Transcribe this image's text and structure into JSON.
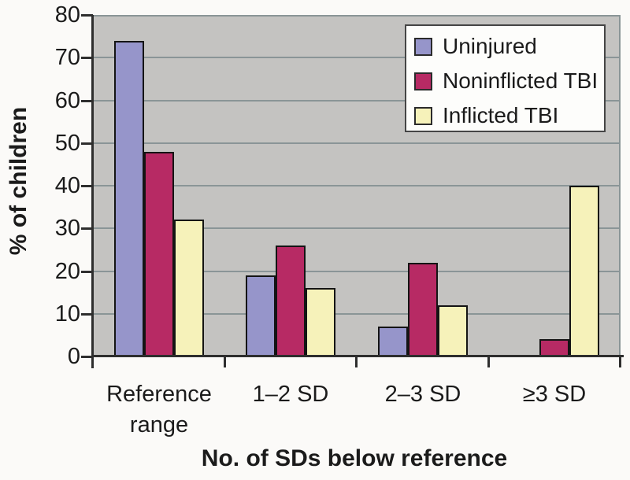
{
  "chart_data": {
    "type": "bar",
    "title": "",
    "xlabel": "No. of SDs below reference",
    "ylabel": "% of children",
    "categories": [
      "Reference range",
      "1–2 SD",
      "2–3 SD",
      "≥3 SD"
    ],
    "series": [
      {
        "name": "Uninjured",
        "color": "#9695ca",
        "values": [
          74,
          19,
          7,
          0
        ]
      },
      {
        "name": "Noninflicted TBI",
        "color": "#b72a64",
        "values": [
          48,
          26,
          22,
          4
        ]
      },
      {
        "name": "Inflicted TBI",
        "color": "#f6f2ba",
        "values": [
          32,
          16,
          12,
          40
        ]
      }
    ],
    "ylim": [
      0,
      80
    ],
    "ytick_step": 10,
    "yticks": [
      "80",
      "70",
      "60",
      "50",
      "40",
      "30",
      "20",
      "10",
      "0"
    ],
    "grid": "horizontal",
    "legend_position": "top-right-inside",
    "colors": {
      "plot_background": "#c4c3c1",
      "gridline": "#8a9597",
      "axis": "#2e2e2e",
      "bar_border": "#141414",
      "legend_background": "#fdfdfb",
      "legend_border": "#454545",
      "text": "#1b1b1b",
      "figure_background": "#fbfaf8"
    }
  }
}
